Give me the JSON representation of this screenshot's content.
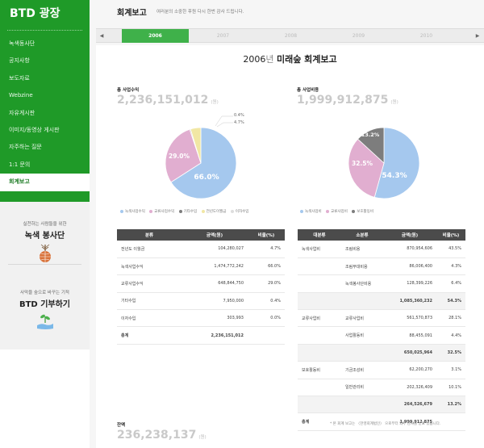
{
  "sidebar": {
    "brand": "BTD 광장",
    "menu": [
      {
        "label": "녹색동사단"
      },
      {
        "label": "공지사항"
      },
      {
        "label": "보도자료"
      },
      {
        "label": "Webzine"
      },
      {
        "label": "자유게시판"
      },
      {
        "label": "이미지/동영상 게시판"
      },
      {
        "label": "자주하는 질문"
      },
      {
        "label": "1:1 문의"
      },
      {
        "label": "회계보고"
      }
    ],
    "promo1": {
      "small": "실천하는 사람들을 위한",
      "big": "녹색 봉사단"
    },
    "promo2": {
      "small": "사막을 숲으로 바꾸는 기적",
      "big": "BTD 기부하기"
    }
  },
  "header": {
    "title": "회계보고",
    "subtitle": "여러분의 소중한 후원 다시 한번 감사 드립니다."
  },
  "year_tabs": [
    "2006",
    "2007",
    "2008",
    "2009",
    "2010"
  ],
  "report": {
    "year": "2006",
    "year_suffix": "년",
    "title": "미래숲 회계보고"
  },
  "income": {
    "label": "총 사업수익",
    "value": "2,236,151,012",
    "unit": "(원)",
    "pie_labels": {
      "a": "66.0%",
      "b": "29.0%"
    },
    "callouts": [
      "0.4%",
      "4.7%"
    ],
    "legend": [
      "녹색사업수익",
      "교류사업수익",
      "기타수입",
      "전년도이월금",
      "이자수입"
    ],
    "table": {
      "headers": [
        "분류",
        "금액(원)",
        "비율(%)"
      ],
      "rows": [
        [
          "전년도 이월금",
          "104,280,027",
          "4.7%"
        ],
        [
          "녹색사업수익",
          "1,474,772,242",
          "66.0%"
        ],
        [
          "교류사업수익",
          "648,844,750",
          "29.0%"
        ],
        [
          "기타수입",
          "7,950,000",
          "0.4%"
        ],
        [
          "이자수입",
          "303,993",
          "0.0%"
        ]
      ],
      "total": [
        "총계",
        "2,236,151,012",
        ""
      ]
    }
  },
  "expense": {
    "label": "총 사업비용",
    "value": "1,999,912,875",
    "unit": "(원)",
    "pie_labels": {
      "a": "54.3%",
      "b": "32.5%",
      "c": "13.2%"
    },
    "legend": [
      "녹색사업비",
      "교류사업비",
      "보호활동비"
    ],
    "table": {
      "headers": [
        "대분류",
        "소분류",
        "금액(원)",
        "비율(%)"
      ],
      "rows": [
        {
          "type": "row",
          "cells": [
            "녹색사업비",
            "조림비용",
            "870,954,606",
            "43.5%"
          ]
        },
        {
          "type": "row",
          "cells": [
            "",
            "조림부대비용",
            "86,006,400",
            "4.3%"
          ]
        },
        {
          "type": "row",
          "cells": [
            "",
            "녹색봉사단비용",
            "128,399,226",
            "6.4%"
          ]
        },
        {
          "type": "subtotal",
          "cells": [
            "",
            "",
            "1,085,360,232",
            "54.3%"
          ]
        },
        {
          "type": "row",
          "cells": [
            "교류사업비",
            "교류사업비",
            "561,570,873",
            "28.1%"
          ]
        },
        {
          "type": "row",
          "cells": [
            "",
            "사업활동비",
            "88,455,091",
            "4.4%"
          ]
        },
        {
          "type": "subtotal",
          "cells": [
            "",
            "",
            "650,025,964",
            "32.5%"
          ]
        },
        {
          "type": "row",
          "cells": [
            "보호활동비",
            "기금조성비",
            "62,200,270",
            "3.1%"
          ]
        },
        {
          "type": "row",
          "cells": [
            "",
            "일반관리비",
            "202,326,409",
            "10.1%"
          ]
        },
        {
          "type": "subtotal",
          "cells": [
            "",
            "",
            "264,526,679",
            "13.2%"
          ]
        },
        {
          "type": "total",
          "cells": [
            "총계",
            "",
            "1,999,912,875",
            ""
          ]
        }
      ]
    }
  },
  "balance": {
    "label": "잔액",
    "value": "236,238,137",
    "unit": "(원)"
  },
  "note": "* 본 회계 보고는 〈한영회계법인〉 으로부터 외부 감사를 받고 있습니다.",
  "colors": {
    "green": "#1f9a28",
    "blue": "#a5c8ee",
    "pink": "#e1aed0",
    "gray": "#7d7d7d",
    "yellow": "#f1e7a4"
  },
  "chart_data": [
    {
      "type": "pie",
      "title": "총 사업수익",
      "labels": [
        "녹색사업수익",
        "교류사업수익",
        "기타수입",
        "전년도이월금",
        "이자수입"
      ],
      "values": [
        66.0,
        29.0,
        0.4,
        4.7,
        0.0
      ]
    },
    {
      "type": "pie",
      "title": "총 사업비용",
      "labels": [
        "녹색사업비",
        "교류사업비",
        "보호활동비"
      ],
      "values": [
        54.3,
        32.5,
        13.2
      ]
    }
  ]
}
